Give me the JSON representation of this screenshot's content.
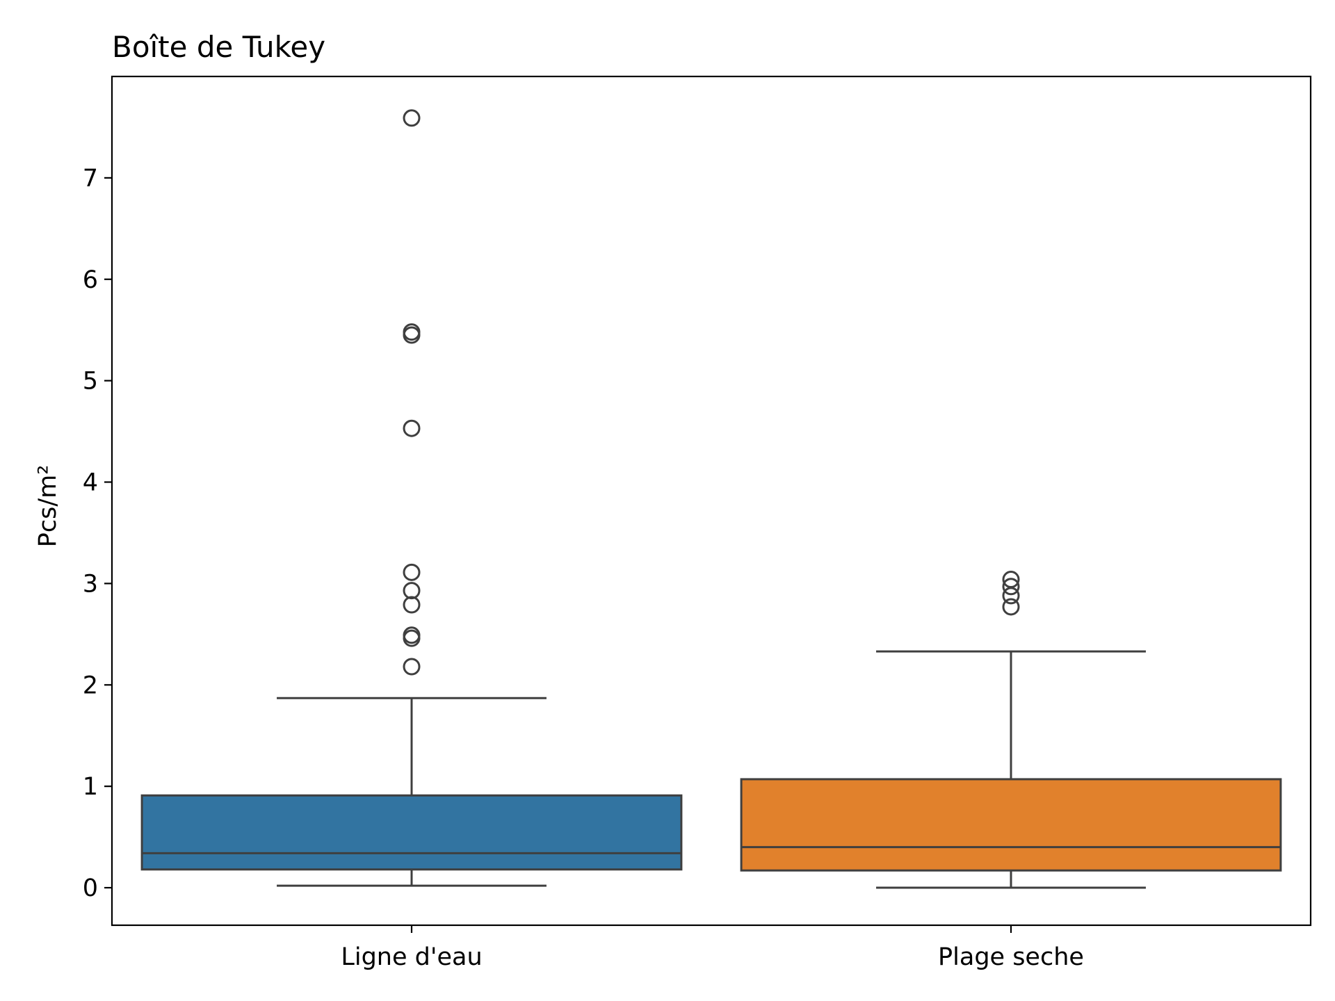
{
  "chart_data": {
    "type": "box",
    "title": "Boîte de Tukey",
    "xlabel": "",
    "ylabel": "Pcs/m²",
    "ylim": [
      -0.37,
      8.0
    ],
    "yticks": [
      0,
      1,
      2,
      3,
      4,
      5,
      6,
      7
    ],
    "grid": false,
    "categories": [
      "Ligne d'eau",
      "Plage seche"
    ],
    "boxes": [
      {
        "category": "Ligne d'eau",
        "color": "#3274a1",
        "whisker_low": 0.02,
        "q1": 0.18,
        "median": 0.34,
        "q3": 0.91,
        "whisker_high": 1.87,
        "outliers": [
          2.18,
          2.46,
          2.49,
          2.79,
          2.93,
          3.11,
          4.53,
          5.45,
          5.48,
          7.59
        ]
      },
      {
        "category": "Plage seche",
        "color": "#e1812c",
        "whisker_low": 0.0,
        "q1": 0.17,
        "median": 0.4,
        "q3": 1.07,
        "whisker_high": 2.33,
        "outliers": [
          2.77,
          2.88,
          2.97,
          3.04
        ]
      }
    ]
  }
}
